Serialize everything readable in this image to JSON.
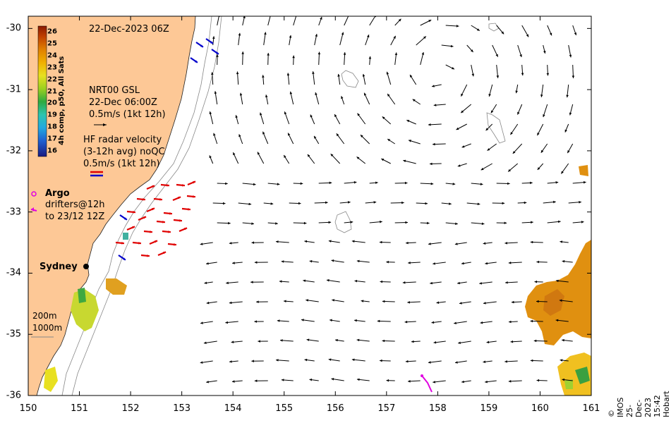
{
  "chart_data": {
    "type": "vector-map",
    "title": "22-Dec-2023 06Z",
    "xlim": [
      150,
      161
    ],
    "ylim": [
      -36,
      -29.8
    ],
    "x_ticks": [
      "150",
      "151",
      "152",
      "153",
      "154",
      "155",
      "156",
      "157",
      "158",
      "159",
      "160",
      "161"
    ],
    "y_ticks": [
      "-30",
      "-31",
      "-32",
      "-33",
      "-34",
      "-35",
      "-36"
    ],
    "colorbar": {
      "title": "4h comp, p50, All Sats",
      "ticks": [
        "26",
        "25",
        "24",
        "23",
        "22",
        "21",
        "20",
        "19",
        "18",
        "17",
        "16"
      ],
      "range": [
        15.5,
        26.5
      ]
    },
    "legend": {
      "altimetry": [
        "NRT00 GSL",
        "22-Dec 06:00Z",
        "0.5m/s (1kt 12h)"
      ],
      "radar": [
        "HF radar velocity",
        "(3-12h avg) noQC",
        "0.5m/s (1kt 12h)"
      ],
      "argo": "Argo",
      "drifters": [
        "drifters@12h",
        "to 23/12 12Z"
      ],
      "depth_200": "200m",
      "depth_1000": "1000m"
    },
    "place_label": "Sydney",
    "credit": "© IMOS 25-Dec-2023 15:42 Hobart",
    "colors": {
      "land": "#fdc896",
      "grid_vectors": "#000000",
      "radar_east": "#e00000",
      "radar_west": "#0000cc",
      "drifter": "#e000e0",
      "argo": "#e000e0"
    }
  }
}
